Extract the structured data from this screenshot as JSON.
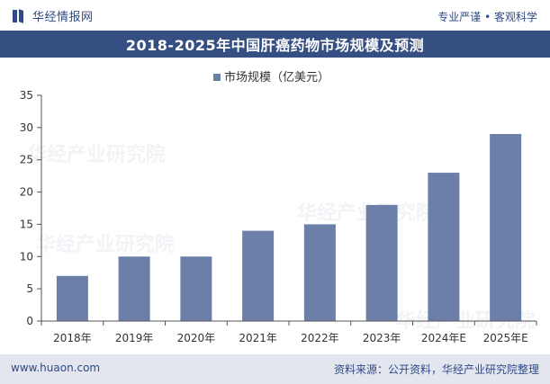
{
  "header": {
    "brand": "华经情报网",
    "tagline": "专业严谨 • 客观科学"
  },
  "footer": {
    "url": "www.huaon.com",
    "source": "资料来源：公开资料，华经产业研究院整理"
  },
  "chart_data": {
    "type": "bar",
    "title": "2018-2025年中国肝癌药物市场规模及预测",
    "categories": [
      "2018年",
      "2019年",
      "2020年",
      "2021年",
      "2022年",
      "2023年",
      "2024年E",
      "2025年E"
    ],
    "series": [
      {
        "name": "市场规模（亿美元）",
        "values": [
          7,
          10,
          10,
          14,
          15,
          18,
          23,
          29
        ]
      }
    ],
    "ylim": [
      0,
      35
    ],
    "yticks": [
      0,
      5,
      10,
      15,
      20,
      25,
      30,
      35
    ],
    "legend_position": "top-center",
    "grid": false,
    "colors": {
      "bar": "#6b7fa8",
      "title_band": "#364f82",
      "axis": "#555555"
    }
  }
}
